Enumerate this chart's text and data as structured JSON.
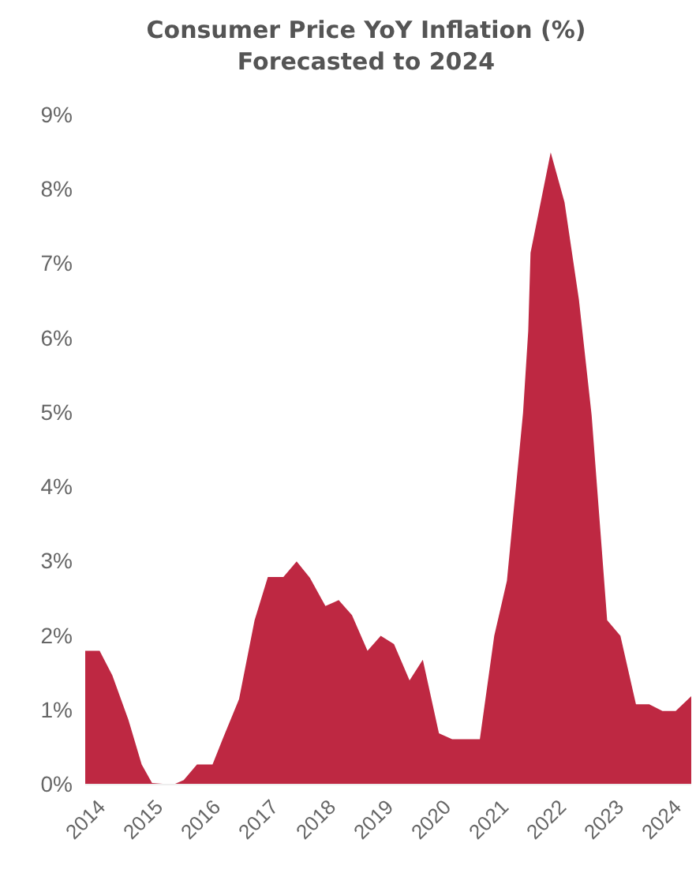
{
  "chart_data": {
    "type": "area",
    "title": "Consumer Price YoY Inflation (%)",
    "subtitle": "Forecasted to 2024",
    "x": [
      2014.0,
      2014.25,
      2014.47,
      2014.75,
      2014.98,
      2015.16,
      2015.53,
      2015.71,
      2015.94,
      2016.21,
      2016.39,
      2016.67,
      2016.94,
      2017.17,
      2017.44,
      2017.67,
      2017.9,
      2018.17,
      2018.4,
      2018.63,
      2018.9,
      2019.13,
      2019.36,
      2019.63,
      2019.86,
      2020.14,
      2020.37,
      2020.85,
      2021.1,
      2021.32,
      2021.6,
      2021.69,
      2021.73,
      2022.08,
      2022.32,
      2022.57,
      2022.79,
      2023.06,
      2023.29,
      2023.56,
      2023.79,
      2024.02,
      2024.25,
      2024.52
    ],
    "series": [
      {
        "color": "#be2842",
        "values": [
          1.8,
          1.8,
          1.47,
          0.87,
          0.27,
          0.02,
          0,
          0.06,
          0.27,
          0.27,
          0.62,
          1.15,
          2.21,
          2.79,
          2.79,
          3.0,
          2.78,
          2.4,
          2.48,
          2.28,
          1.8,
          2.0,
          1.89,
          1.4,
          1.68,
          0.69,
          0.61,
          0.61,
          2.0,
          2.74,
          5.0,
          6.1,
          7.15,
          8.5,
          7.83,
          6.52,
          4.97,
          2.21,
          2.0,
          1.08,
          1.08,
          0.99,
          0.99,
          1.19
        ]
      }
    ],
    "xlim": [
      2014,
      2024.52
    ],
    "xticks": [
      2014,
      2015,
      2016,
      2017,
      2018,
      2019,
      2020,
      2021,
      2022,
      2023,
      2024
    ],
    "ylim": [
      0,
      9
    ],
    "yticks": [
      {
        "value": 0,
        "label": "0%"
      },
      {
        "value": 1,
        "label": "1%"
      },
      {
        "value": 2,
        "label": "2%"
      },
      {
        "value": 3,
        "label": "3%"
      },
      {
        "value": 4,
        "label": "4%"
      },
      {
        "value": 5,
        "label": "5%"
      },
      {
        "value": 6,
        "label": "6%"
      },
      {
        "value": 7,
        "label": "7%"
      },
      {
        "value": 8,
        "label": "8%"
      },
      {
        "value": 9,
        "label": "9%"
      }
    ],
    "grid": false
  }
}
